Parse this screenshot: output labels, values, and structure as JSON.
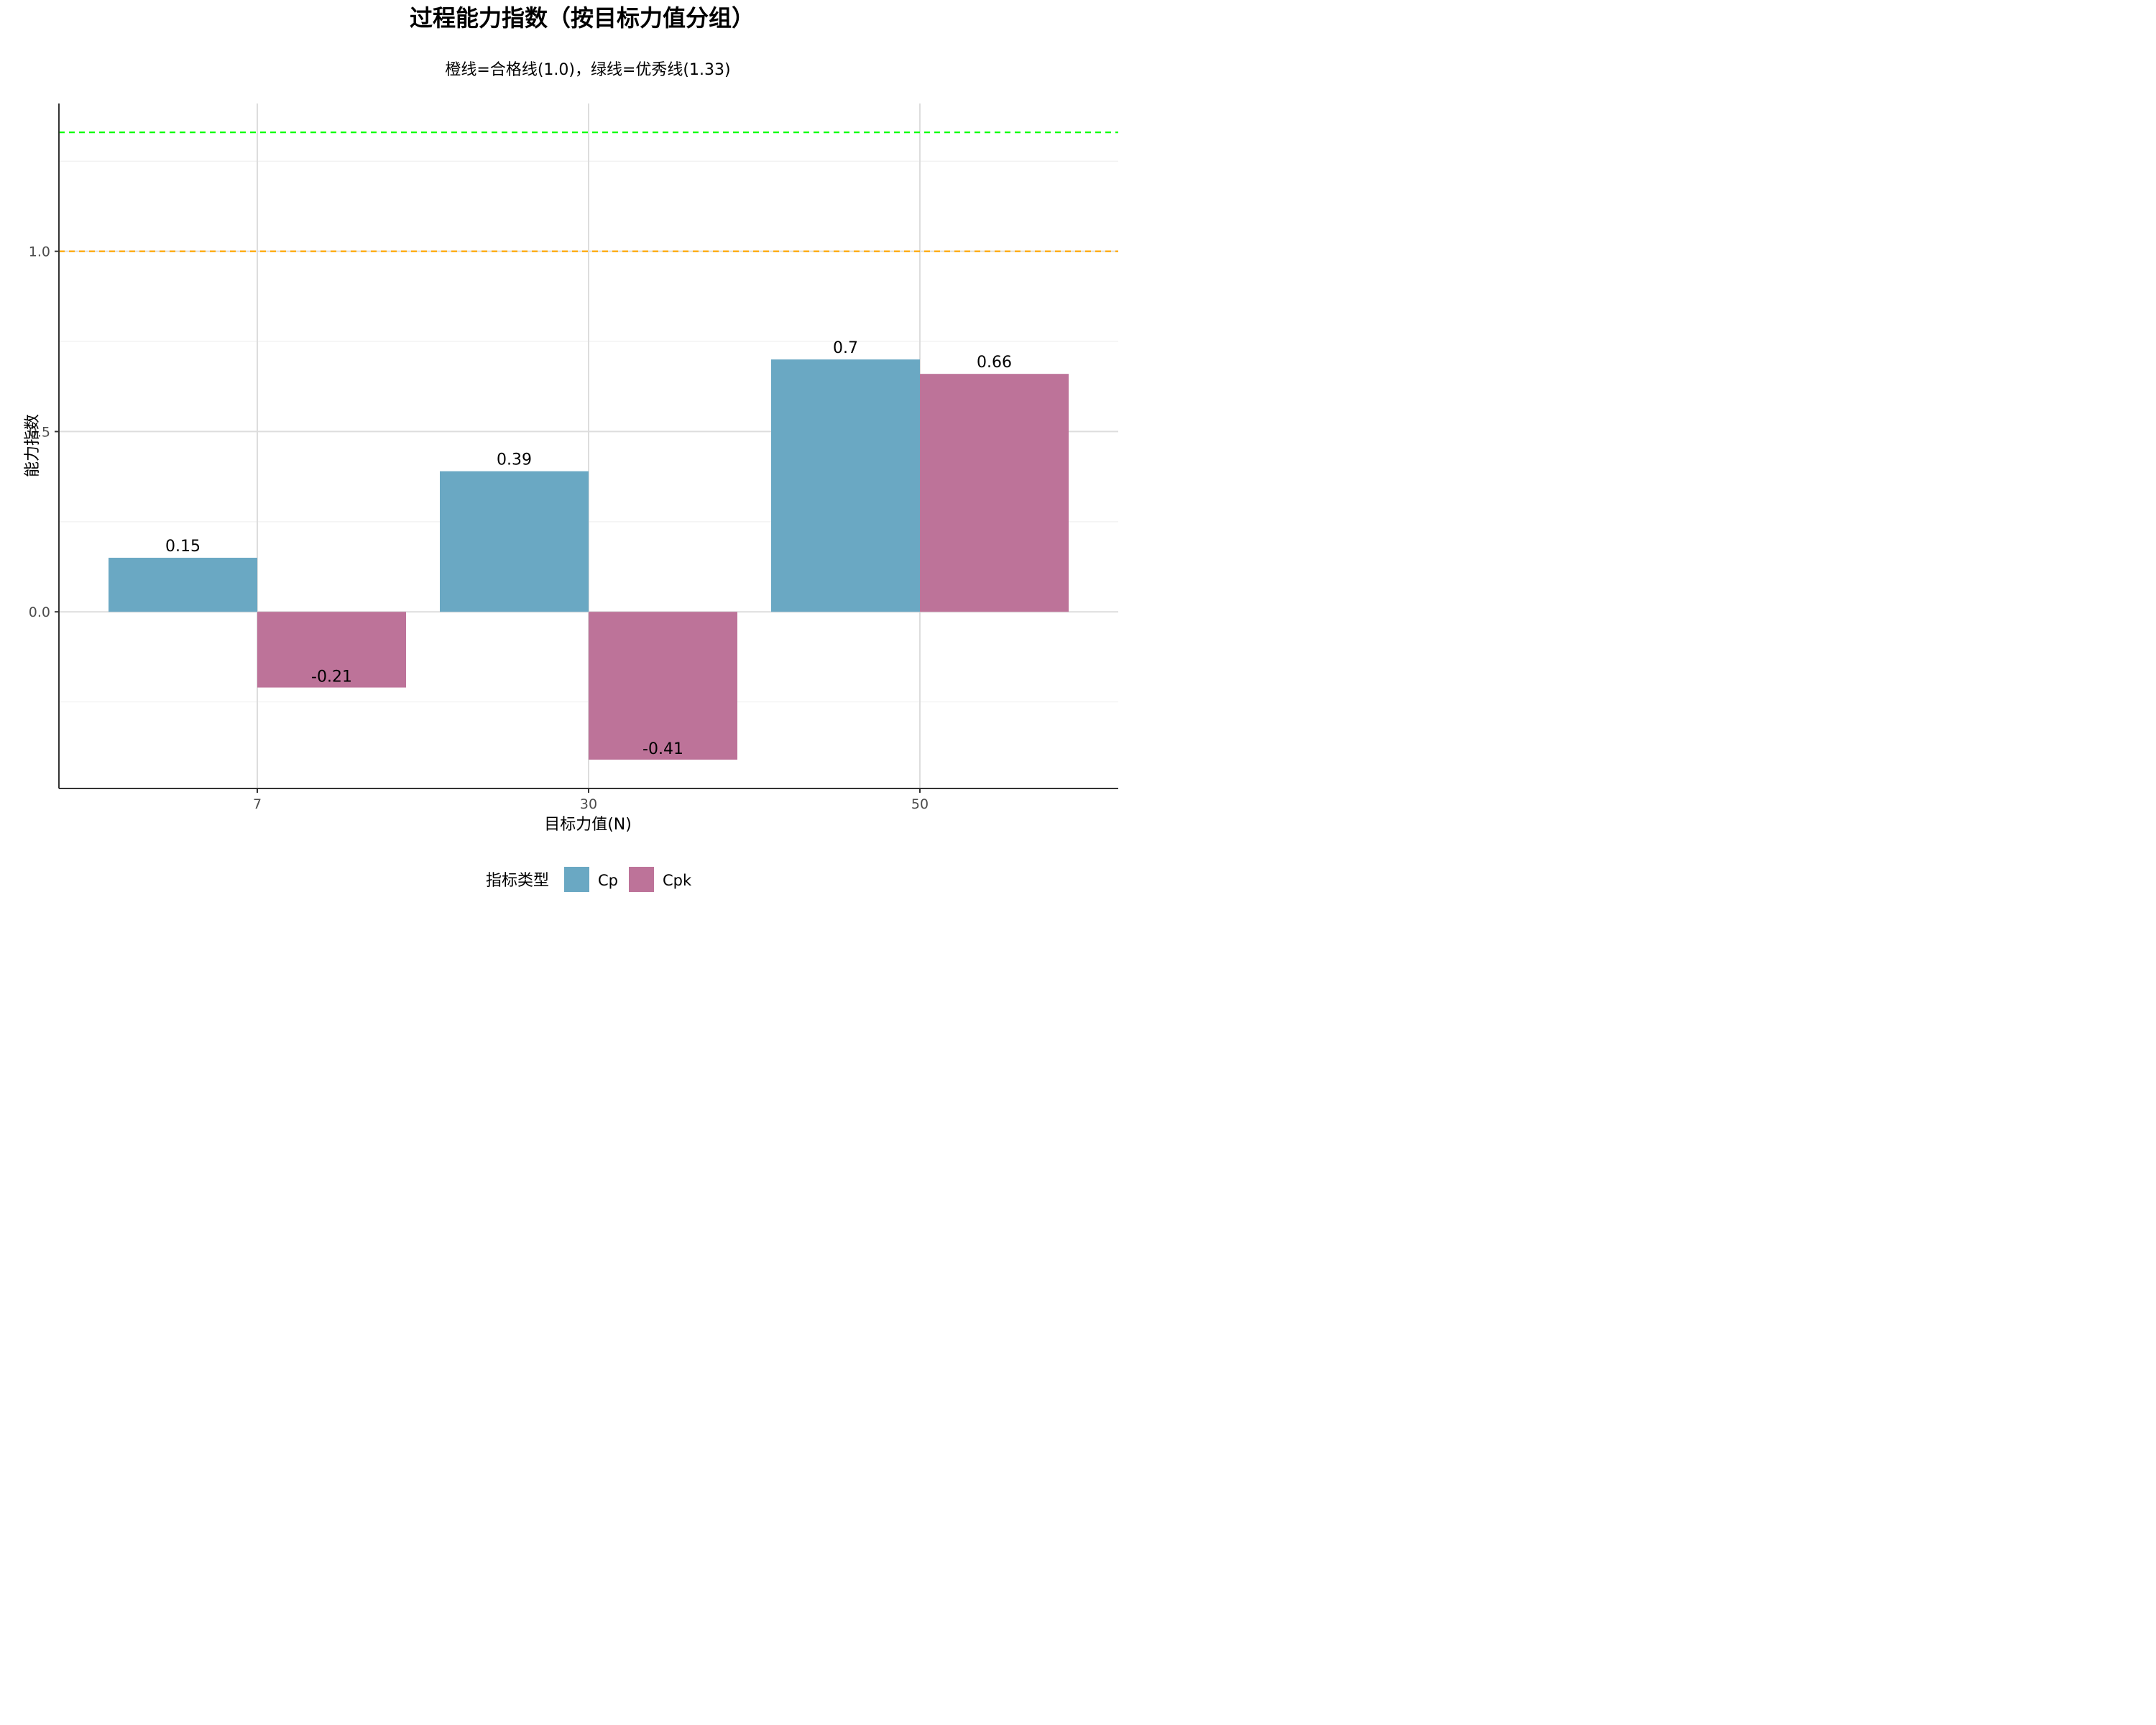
{
  "chart_data": {
    "type": "bar",
    "title": "过程能力指数（按目标力值分组）",
    "subtitle": "橙线=合格线(1.0)，绿线=优秀线(1.33)",
    "xlabel": "目标力值(N)",
    "ylabel": "能力指数",
    "categories": [
      "7",
      "30",
      "50"
    ],
    "series": [
      {
        "name": "Cp",
        "color": "#6aa8c3",
        "values": [
          0.15,
          0.39,
          0.7
        ],
        "labels": [
          "0.15",
          "0.39",
          "0.7"
        ]
      },
      {
        "name": "Cpk",
        "color": "#bd7399",
        "values": [
          -0.21,
          -0.41,
          0.66
        ],
        "labels": [
          "-0.21",
          "-0.41",
          "0.66"
        ]
      }
    ],
    "ylim": [
      -0.49,
      1.41
    ],
    "yticks": [
      0.0,
      0.5,
      1.0
    ],
    "ytick_labels": [
      "0.0",
      "0.5",
      "1.0"
    ],
    "reference_lines": [
      {
        "value": 1.0,
        "color": "#ffa500",
        "style": "dashed"
      },
      {
        "value": 1.33,
        "color": "#00ff00",
        "style": "dashed"
      }
    ],
    "legend": {
      "title": "指标类型",
      "position": "bottom"
    },
    "grid": true
  }
}
